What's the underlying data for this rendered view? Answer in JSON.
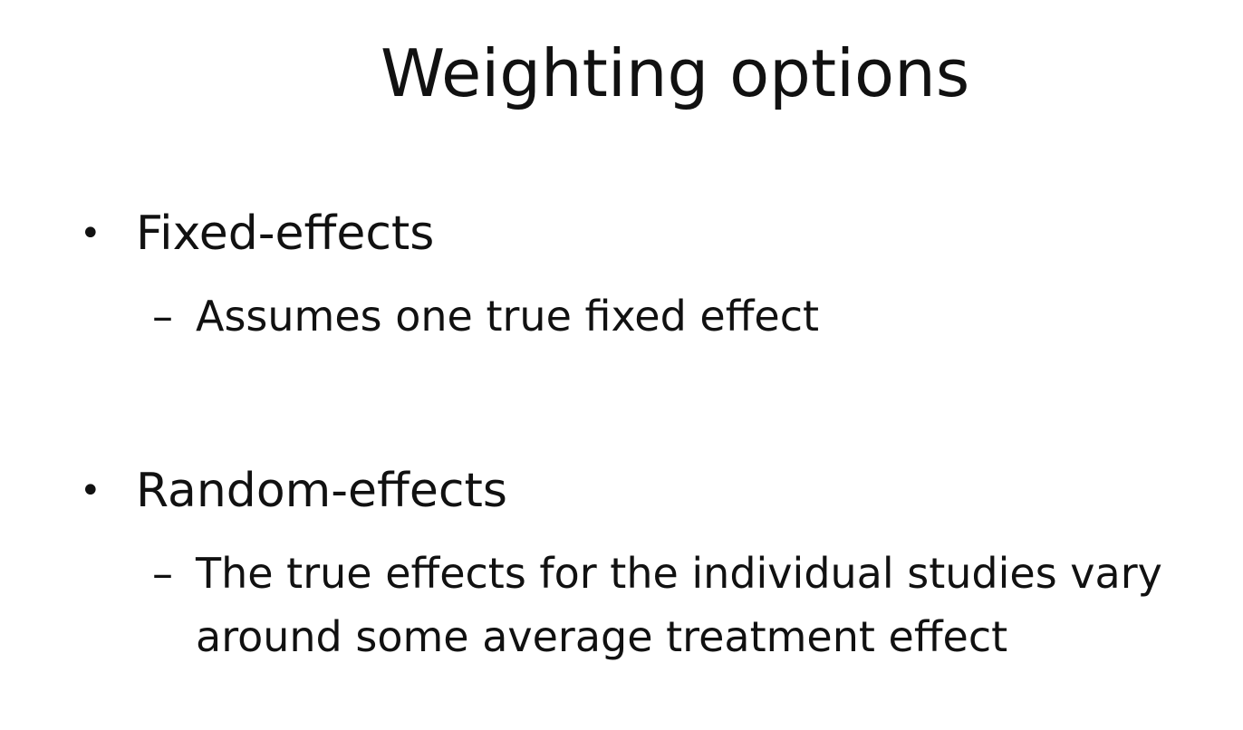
{
  "slide": {
    "title": "Weighting options",
    "bullets": [
      {
        "marker": "•",
        "label": "Fixed-effects",
        "sub": {
          "marker": "–",
          "text": "Assumes one true fixed effect"
        }
      },
      {
        "marker": "•",
        "label": "Random-effects",
        "sub": {
          "marker": "–",
          "text": "The true effects for the individual studies vary around some average treatment effect"
        }
      }
    ]
  }
}
